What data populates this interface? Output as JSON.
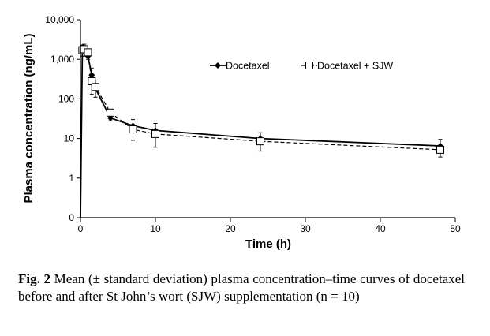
{
  "chart_data": {
    "type": "line",
    "xlabel": "Time (h)",
    "ylabel": "Plasma concentration (ng/mL)",
    "y_scale": "log",
    "xlim": [
      0,
      50
    ],
    "ylim": [
      0,
      10000
    ],
    "x_ticks": [
      0,
      10,
      20,
      30,
      40,
      50
    ],
    "y_ticks": [
      0,
      1,
      10,
      100,
      1000,
      10000
    ],
    "y_tick_labels": [
      "0",
      "1",
      "10",
      "100",
      "1,000",
      "10,000"
    ],
    "legend_position": "top-right",
    "grid": false,
    "series": [
      {
        "name": "Docetaxel",
        "line_style": "solid",
        "marker": "filled-diamond",
        "x": [
          0,
          0.25,
          0.5,
          1,
          1.5,
          2,
          4,
          7,
          10,
          24,
          48
        ],
        "y": [
          0,
          1600,
          1900,
          1200,
          400,
          180,
          33,
          21,
          16,
          10,
          6.5
        ],
        "error_high": [
          0,
          2300,
          2400,
          1700,
          600,
          300,
          52,
          30,
          24,
          14,
          9.5
        ]
      },
      {
        "name": "Docetaxel + SJW",
        "line_style": "dashed",
        "marker": "open-square",
        "x": [
          0,
          0.25,
          0.5,
          1,
          1.5,
          2,
          4,
          7,
          10,
          24,
          48
        ],
        "y": [
          0,
          1700,
          1800,
          1500,
          280,
          200,
          45,
          17,
          13,
          8.5,
          5.2
        ],
        "error_low": [
          0,
          1200,
          1200,
          1000,
          130,
          110,
          28,
          9,
          6,
          4.8,
          3.4
        ]
      }
    ]
  },
  "caption": {
    "label": "Fig. 2",
    "text": "Mean (± standard deviation) plasma concentration–time curves of docetaxel before and after St John’s wort (SJW) supplementation (n = 10)"
  }
}
